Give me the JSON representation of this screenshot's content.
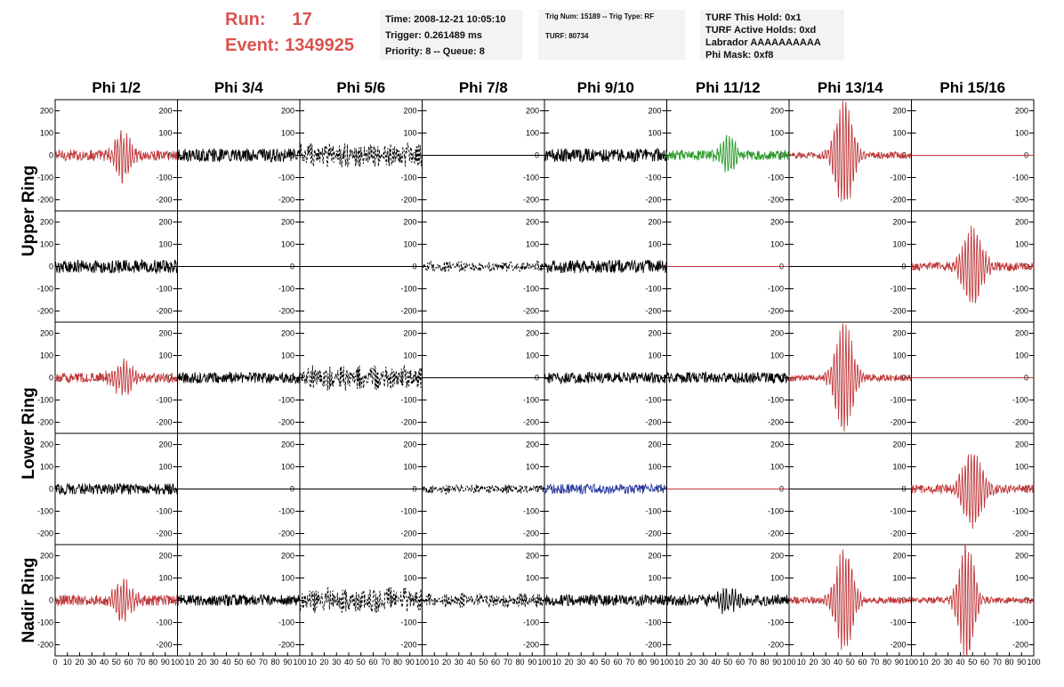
{
  "header": {
    "run_label": "Run:",
    "run_value": "17",
    "event_label": "Event:",
    "event_value": "1349925",
    "time": "Time: 2008-12-21 10:05:10",
    "trigger": "Trigger: 0.261489 ms",
    "priority": "Priority: 8 -- Queue: 8",
    "trig_num": "Trig Num: 15189 -- Trig Type: RF",
    "turf": "TURF: 80734",
    "turf_hold": "TURF This Hold: 0x1",
    "turf_active": "TURF Active Holds: 0xd",
    "labrador": "Labrador AAAAAAAAAA",
    "phi_mask": "Phi Mask: 0xf8"
  },
  "colors": {
    "red": "#c0393b",
    "black": "#000000",
    "green": "#2a9a2a",
    "blue": "#2b3a9e",
    "title_red": "#d9534f"
  },
  "chart_data": {
    "type": "line",
    "columns": [
      "Phi 1/2",
      "Phi 3/4",
      "Phi 5/6",
      "Phi 7/8",
      "Phi 9/10",
      "Phi 11/12",
      "Phi 13/14",
      "Phi 15/16"
    ],
    "rows": [
      "Upper Ring",
      "Lower Ring",
      "Nadir Ring"
    ],
    "row_groups": [
      {
        "label": "Upper Ring",
        "span": 2
      },
      {
        "label": "Lower Ring",
        "span": 2
      },
      {
        "label": "Nadir Ring",
        "span": 1
      }
    ],
    "ylim": [
      -250,
      250
    ],
    "yticks": [
      -200,
      -100,
      0,
      100,
      200
    ],
    "xlim": [
      0,
      100
    ],
    "xticks": [
      0,
      10,
      20,
      30,
      40,
      50,
      60,
      70,
      80,
      90,
      100
    ],
    "grid": false,
    "panels": [
      [
        {
          "color": "red",
          "style": "solid",
          "amp": 25,
          "peak": 110,
          "center": 55,
          "width": 8
        },
        {
          "color": "black",
          "style": "solid",
          "amp": 30,
          "peak": 0,
          "center": 50,
          "width": 10
        },
        {
          "color": "black",
          "style": "dashed",
          "amp": 60,
          "peak": 0,
          "center": 50,
          "width": 10
        },
        {
          "color": "black",
          "style": "solid",
          "amp": 0,
          "peak": 0,
          "center": 50,
          "width": 10
        },
        {
          "color": "black",
          "style": "solid",
          "amp": 30,
          "peak": 0,
          "center": 50,
          "width": 10
        },
        {
          "color": "green",
          "style": "solid",
          "amp": 22,
          "peak": 80,
          "center": 50,
          "width": 8
        },
        {
          "color": "red",
          "style": "solid",
          "amp": 15,
          "peak": 250,
          "center": 45,
          "width": 9
        },
        {
          "color": "red",
          "style": "solid",
          "amp": 0,
          "peak": 0,
          "center": 50,
          "width": 10
        }
      ],
      [
        {
          "color": "black",
          "style": "solid",
          "amp": 30,
          "peak": 0,
          "center": 50,
          "width": 10
        },
        {
          "color": "black",
          "style": "solid",
          "amp": 0,
          "peak": 0,
          "center": 50,
          "width": 10
        },
        {
          "color": "black",
          "style": "solid",
          "amp": 0,
          "peak": 0,
          "center": 50,
          "width": 10
        },
        {
          "color": "black",
          "style": "dashed",
          "amp": 25,
          "peak": 0,
          "center": 50,
          "width": 10
        },
        {
          "color": "black",
          "style": "solid",
          "amp": 30,
          "peak": 0,
          "center": 50,
          "width": 10
        },
        {
          "color": "red",
          "style": "solid",
          "amp": 0,
          "peak": 0,
          "center": 50,
          "width": 10
        },
        {
          "color": "black",
          "style": "solid",
          "amp": 0,
          "peak": 0,
          "center": 50,
          "width": 10
        },
        {
          "color": "red",
          "style": "solid",
          "amp": 20,
          "peak": 180,
          "center": 50,
          "width": 10
        }
      ],
      [
        {
          "color": "red",
          "style": "solid",
          "amp": 22,
          "peak": 70,
          "center": 55,
          "width": 10
        },
        {
          "color": "black",
          "style": "solid",
          "amp": 25,
          "peak": 0,
          "center": 50,
          "width": 10
        },
        {
          "color": "black",
          "style": "dashed",
          "amp": 60,
          "peak": 0,
          "center": 50,
          "width": 10
        },
        {
          "color": "black",
          "style": "solid",
          "amp": 0,
          "peak": 0,
          "center": 50,
          "width": 10
        },
        {
          "color": "black",
          "style": "solid",
          "amp": 25,
          "peak": 0,
          "center": 50,
          "width": 10
        },
        {
          "color": "black",
          "style": "solid",
          "amp": 25,
          "peak": 0,
          "center": 50,
          "width": 10
        },
        {
          "color": "red",
          "style": "solid",
          "amp": 15,
          "peak": 250,
          "center": 45,
          "width": 9
        },
        {
          "color": "red",
          "style": "solid",
          "amp": 0,
          "peak": 0,
          "center": 50,
          "width": 10
        }
      ],
      [
        {
          "color": "black",
          "style": "solid",
          "amp": 25,
          "peak": 0,
          "center": 50,
          "width": 10
        },
        {
          "color": "black",
          "style": "solid",
          "amp": 0,
          "peak": 0,
          "center": 50,
          "width": 10
        },
        {
          "color": "black",
          "style": "solid",
          "amp": 0,
          "peak": 0,
          "center": 50,
          "width": 10
        },
        {
          "color": "black",
          "style": "dashed",
          "amp": 22,
          "peak": 0,
          "center": 50,
          "width": 10
        },
        {
          "color": "blue",
          "style": "solid",
          "amp": 22,
          "peak": 0,
          "center": 50,
          "width": 10
        },
        {
          "color": "red",
          "style": "solid",
          "amp": 0,
          "peak": 0,
          "center": 50,
          "width": 10
        },
        {
          "color": "black",
          "style": "solid",
          "amp": 0,
          "peak": 0,
          "center": 50,
          "width": 10
        },
        {
          "color": "red",
          "style": "solid",
          "amp": 20,
          "peak": 180,
          "center": 50,
          "width": 10
        }
      ],
      [
        {
          "color": "red",
          "style": "solid",
          "amp": 25,
          "peak": 80,
          "center": 55,
          "width": 10
        },
        {
          "color": "black",
          "style": "solid",
          "amp": 25,
          "peak": 0,
          "center": 50,
          "width": 10
        },
        {
          "color": "black",
          "style": "dashed",
          "amp": 60,
          "peak": 0,
          "center": 50,
          "width": 10
        },
        {
          "color": "black",
          "style": "dashed",
          "amp": 35,
          "peak": 0,
          "center": 50,
          "width": 10
        },
        {
          "color": "black",
          "style": "solid",
          "amp": 25,
          "peak": 0,
          "center": 50,
          "width": 10
        },
        {
          "color": "black",
          "style": "solid",
          "amp": 25,
          "peak": 50,
          "center": 50,
          "width": 10
        },
        {
          "color": "red",
          "style": "solid",
          "amp": 15,
          "peak": 240,
          "center": 45,
          "width": 9
        },
        {
          "color": "red",
          "style": "solid",
          "amp": 15,
          "peak": 260,
          "center": 45,
          "width": 8
        }
      ]
    ]
  }
}
